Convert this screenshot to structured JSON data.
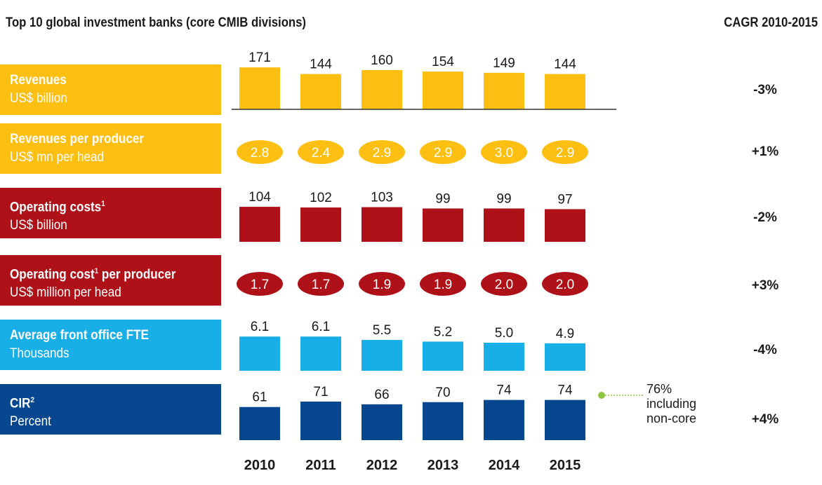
{
  "title": "Top 10 global investment banks (core CMIB divisions)",
  "cagr_header": "CAGR 2010-2015",
  "colors": {
    "yellow": "#fdbf11",
    "red": "#ae1117",
    "light_blue": "#18aee6",
    "dark_blue": "#07478f"
  },
  "rows": [
    {
      "name": "revenues",
      "main": "Revenues",
      "sup": "",
      "sub": "US$ billion",
      "cagr": "-3%"
    },
    {
      "name": "revenues-per-producer",
      "main": "Revenues per producer",
      "sup": "",
      "sub": "US$ mn per head",
      "cagr": "+1%"
    },
    {
      "name": "operating-costs",
      "main": "Operating costs",
      "sup": "1",
      "sub": "US$ billion",
      "cagr": "-2%"
    },
    {
      "name": "operating-cost-per-producer",
      "main": "Operating cost",
      "sup": "1",
      "main_suffix": " per producer",
      "sub": "US$ million per head",
      "cagr": "+3%"
    },
    {
      "name": "front-office-fte",
      "main": "Average front office FTE",
      "sup": "",
      "sub": "Thousands",
      "cagr": "-4%"
    },
    {
      "name": "cir",
      "main": "CIR",
      "sup": "2",
      "sub": "Percent",
      "cagr": "+4%"
    }
  ],
  "annotation": {
    "line1": "76%",
    "line2": "including",
    "line3": "non-core"
  },
  "chart_data": {
    "type": "bar",
    "categories": [
      "2010",
      "2011",
      "2012",
      "2013",
      "2014",
      "2015"
    ],
    "series": [
      {
        "name": "Revenues",
        "values": [
          171,
          144,
          160,
          154,
          149,
          144
        ],
        "labels": [
          "171",
          "144",
          "160",
          "154",
          "149",
          "144"
        ]
      },
      {
        "name": "Revenues per producer",
        "values": [
          2.8,
          2.4,
          2.9,
          2.9,
          3.0,
          2.9
        ],
        "labels": [
          "2.8",
          "2.4",
          "2.9",
          "2.9",
          "3.0",
          "2.9"
        ]
      },
      {
        "name": "Operating costs",
        "values": [
          104,
          102,
          103,
          99,
          99,
          97
        ],
        "labels": [
          "104",
          "102",
          "103",
          "99",
          "99",
          "97"
        ]
      },
      {
        "name": "Operating cost per producer",
        "values": [
          1.7,
          1.7,
          1.9,
          1.9,
          2.0,
          2.0
        ],
        "labels": [
          "1.7",
          "1.7",
          "1.9",
          "1.9",
          "2.0",
          "2.0"
        ]
      },
      {
        "name": "Average front office FTE",
        "values": [
          6.1,
          6.1,
          5.5,
          5.2,
          5.0,
          4.9
        ],
        "labels": [
          "6.1",
          "6.1",
          "5.5",
          "5.2",
          "5.0",
          "4.9"
        ]
      },
      {
        "name": "CIR",
        "values": [
          61,
          71,
          66,
          70,
          74,
          74
        ],
        "labels": [
          "61",
          "71",
          "66",
          "70",
          "74",
          "74"
        ]
      }
    ]
  }
}
